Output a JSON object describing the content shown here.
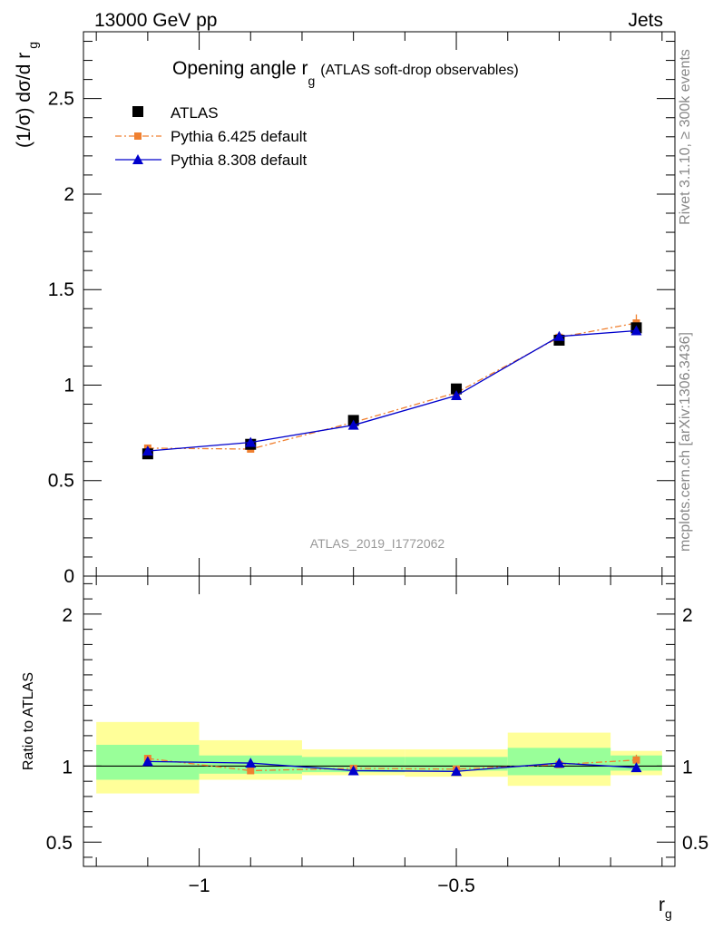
{
  "header": {
    "left": "13000 GeV pp",
    "right": "Jets"
  },
  "side_labels": {
    "rivet": "Rivet 3.1.10, ≥ 300k events",
    "mcplots": "mcplots.cern.ch [arXiv:1306.3436]"
  },
  "chart_data": [
    {
      "type": "line",
      "title": "Opening angle r",
      "title_sub": "g",
      "title_suffix": "(ATLAS soft-drop observables)",
      "ylabel": "(1/σ) dσ/d r",
      "ylabel_sub": "g",
      "xlabel": "r",
      "xlabel_sub": "g",
      "watermark": "ATLAS_2019_I1772062",
      "xlim": [
        -1.225,
        -0.075
      ],
      "ylim": [
        0,
        2.85
      ],
      "yticks": [
        0,
        0.5,
        1,
        1.5,
        2,
        2.5
      ],
      "ytick_labels": [
        "0",
        "0.5",
        "1",
        "1.5",
        "2",
        "2.5"
      ],
      "legend": {
        "position": "top-left",
        "entries": [
          "ATLAS",
          "Pythia 6.425 default",
          "Pythia 8.308 default"
        ]
      },
      "colors": {
        "atlas": "#000000",
        "pythia6": "#f08030",
        "pythia8": "#0000cc"
      },
      "bins": [
        {
          "lo": -1.2,
          "hi": -1.0,
          "x": -1.1
        },
        {
          "lo": -1.0,
          "hi": -0.8,
          "x": -0.9
        },
        {
          "lo": -0.8,
          "hi": -0.6,
          "x": -0.7
        },
        {
          "lo": -0.6,
          "hi": -0.4,
          "x": -0.5
        },
        {
          "lo": -0.4,
          "hi": -0.2,
          "x": -0.3
        },
        {
          "lo": -0.2,
          "hi": -0.1,
          "x": -0.15
        }
      ],
      "series": [
        {
          "name": "ATLAS",
          "values": [
            0.64,
            0.69,
            0.815,
            0.98,
            1.235,
            1.3
          ]
        },
        {
          "name": "Pythia 6.425 default",
          "values": [
            0.67,
            0.665,
            0.805,
            0.96,
            1.25,
            1.325
          ],
          "errors": [
            0.012,
            0.012,
            0.015,
            0.02,
            0.025,
            0.045
          ]
        },
        {
          "name": "Pythia 8.308 default",
          "values": [
            0.655,
            0.7,
            0.79,
            0.945,
            1.255,
            1.285
          ]
        }
      ]
    },
    {
      "type": "line",
      "ylabel": "Ratio to ATLAS",
      "ylim": [
        0.34,
        2.25
      ],
      "yticks": [
        0.5,
        1,
        2
      ],
      "ytick_labels": [
        "0.5",
        "1",
        "2"
      ],
      "xticks": [
        -1,
        -0.5
      ],
      "xtick_labels": [
        "−1",
        "−0.5"
      ],
      "bands": {
        "inner": [
          [
            0.91,
            1.14
          ],
          [
            0.95,
            1.07
          ],
          [
            0.96,
            1.06
          ],
          [
            0.97,
            1.06
          ],
          [
            0.94,
            1.12
          ],
          [
            0.97,
            1.07
          ]
        ],
        "outer": [
          [
            0.82,
            1.29
          ],
          [
            0.91,
            1.17
          ],
          [
            0.94,
            1.11
          ],
          [
            0.93,
            1.11
          ],
          [
            0.87,
            1.22
          ],
          [
            0.94,
            1.1
          ]
        ],
        "inner_color": "#99ff99",
        "outer_color": "#ffff99"
      },
      "series": [
        {
          "name": "Pythia 6.425 default",
          "values": [
            1.05,
            0.97,
            0.985,
            0.98,
            1.01,
            1.04
          ],
          "errors": [
            0.02,
            0.02,
            0.02,
            0.02,
            0.02,
            0.035
          ]
        },
        {
          "name": "Pythia 8.308 default",
          "values": [
            1.03,
            1.02,
            0.97,
            0.965,
            1.02,
            0.99
          ]
        }
      ]
    }
  ]
}
